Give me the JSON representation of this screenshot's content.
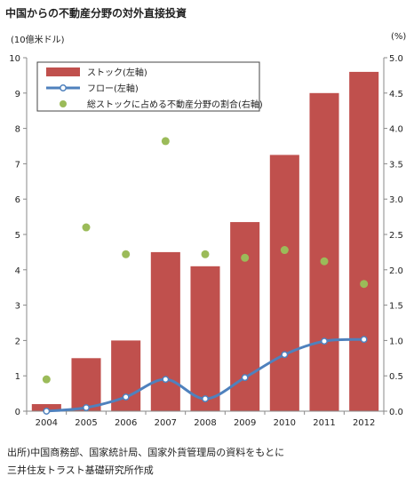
{
  "title": "中国からの不動産分野の対外直接投資",
  "chart_data": {
    "type": "bar",
    "categories": [
      "2004",
      "2005",
      "2006",
      "2007",
      "2008",
      "2009",
      "2010",
      "2011",
      "2012"
    ],
    "left_axis_label": "(10億米ドル)",
    "right_axis_label": "(%)",
    "left_ylim": [
      0,
      10
    ],
    "right_ylim": [
      0,
      5.0
    ],
    "left_ticks": [
      "0",
      "1",
      "2",
      "3",
      "4",
      "5",
      "6",
      "7",
      "8",
      "9",
      "10"
    ],
    "right_ticks": [
      "0.0",
      "0.5",
      "1.0",
      "1.5",
      "2.0",
      "2.5",
      "3.0",
      "3.5",
      "4.0",
      "4.5",
      "5.0"
    ],
    "series": [
      {
        "name": "ストック(左軸)",
        "type": "bar",
        "axis": "left",
        "color": "#c0504d",
        "values": [
          0.2,
          1.5,
          2.0,
          4.5,
          4.1,
          5.35,
          7.25,
          9.0,
          9.6
        ]
      },
      {
        "name": "フロー(左軸)",
        "type": "line",
        "axis": "left",
        "color": "#4f81bd",
        "values": [
          0.0,
          0.1,
          0.4,
          0.9,
          0.35,
          0.95,
          1.6,
          1.98,
          2.03
        ]
      },
      {
        "name": "総ストックに占める不動産分野の割合(右軸)",
        "type": "scatter",
        "axis": "right",
        "color": "#9bbb59",
        "values": [
          0.45,
          2.6,
          2.22,
          3.82,
          2.22,
          2.17,
          2.28,
          2.12,
          1.8
        ]
      }
    ],
    "legend_position": "top-left",
    "grid": false
  },
  "source_lines": [
    "出所)中国商務部、国家統計局、国家外貨管理局の資料をもとに",
    "三井住友トラスト基礎研究所作成"
  ]
}
